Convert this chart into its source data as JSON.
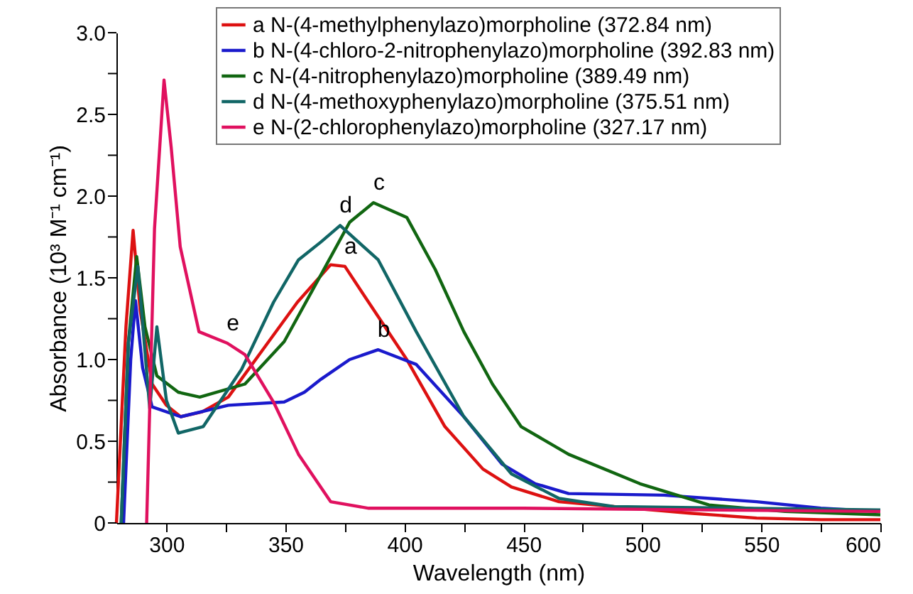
{
  "chart_data": {
    "type": "line",
    "xlabel": "Wavelength (nm)",
    "ylabel": "Absorbance (10³ M⁻¹ cm⁻¹)",
    "xlim": [
      279,
      600
    ],
    "ylim": [
      0,
      3
    ],
    "xticks": [
      300,
      {
        "value": 325,
        "label": null
      },
      350,
      {
        "value": 375,
        "label": null
      },
      400,
      {
        "value": 425,
        "label": null
      },
      450,
      {
        "value": 475,
        "label": null
      },
      500,
      {
        "value": 525,
        "label": null
      },
      550,
      {
        "value": 575,
        "label": null
      },
      600
    ],
    "yticks": [
      0,
      {
        "value": 0.25,
        "label": null
      },
      0.5,
      {
        "value": 0.75,
        "label": null
      },
      {
        "value": 1,
        "label": "1.0"
      },
      {
        "value": 1.25,
        "label": null
      },
      1.5,
      {
        "value": 1.75,
        "label": null
      },
      {
        "value": 2,
        "label": "2.0"
      },
      {
        "value": 2.25,
        "label": null
      },
      2.5,
      {
        "value": 2.75,
        "label": null
      },
      {
        "value": 3,
        "label": "3.0"
      }
    ],
    "grid": false,
    "legend": "top right",
    "line_style": "solid",
    "marker": "none",
    "series": [
      {
        "name": "a N-(4-methylphenylazo)morpholine (372.84 nm)",
        "color": "#dd1111",
        "x": [
          279,
          283,
          286,
          289,
          294,
          300,
          306,
          315,
          326,
          340,
          355,
          369,
          375,
          385,
          401,
          417,
          433,
          445,
          465,
          488,
          520,
          548,
          575,
          600
        ],
        "values": [
          0,
          1.2,
          1.79,
          1.3,
          0.85,
          0.72,
          0.65,
          0.68,
          0.77,
          1.05,
          1.35,
          1.58,
          1.57,
          1.35,
          1.0,
          0.59,
          0.33,
          0.22,
          0.13,
          0.1,
          0.06,
          0.03,
          0.02,
          0.02
        ]
      },
      {
        "name": "b N-(4-chloro-2-nitrophenylazo)morpholine (392.83 nm)",
        "color": "#1a1acc",
        "x": [
          282,
          285,
          287,
          290,
          294,
          306,
          326,
          349.5,
          358,
          365,
          377,
          389,
          405,
          425,
          441,
          455,
          469,
          509,
          548,
          575,
          600
        ],
        "values": [
          0,
          1.0,
          1.36,
          0.95,
          0.71,
          0.65,
          0.72,
          0.74,
          0.8,
          0.88,
          1.0,
          1.06,
          0.97,
          0.65,
          0.36,
          0.24,
          0.18,
          0.17,
          0.13,
          0.09,
          0.07
        ]
      },
      {
        "name": "c N-(4-nitrophenylazo)morpholine (389.49 nm)",
        "color": "#116611",
        "x": [
          281,
          284,
          287.5,
          291,
          296,
          305,
          314,
          333,
          349.5,
          365,
          377,
          387,
          401,
          413,
          425,
          437,
          449,
          469,
          499,
          528,
          560,
          600
        ],
        "values": [
          0,
          1.1,
          1.63,
          1.2,
          0.9,
          0.8,
          0.77,
          0.85,
          1.11,
          1.52,
          1.84,
          1.96,
          1.87,
          1.55,
          1.17,
          0.85,
          0.59,
          0.42,
          0.24,
          0.11,
          0.07,
          0.05
        ]
      },
      {
        "name": "d N-(4-methoxyphenylazo)morpholine (375.51 nm)",
        "color": "#116666",
        "x": [
          281,
          284,
          288,
          293,
          296,
          300,
          305,
          315.5,
          331.6,
          345,
          355.5,
          365,
          373,
          389,
          405,
          425,
          445,
          465,
          488,
          540,
          600
        ],
        "values": [
          0,
          1.1,
          1.57,
          0.7,
          1.2,
          0.75,
          0.55,
          0.59,
          0.94,
          1.35,
          1.61,
          1.72,
          1.82,
          1.61,
          1.17,
          0.65,
          0.3,
          0.15,
          0.1,
          0.09,
          0.08
        ]
      },
      {
        "name": "e N-(2-chlorophenylazo)morpholine (327.17 nm)",
        "color": "#e0115f",
        "x": [
          291.7,
          295,
          299,
          302,
          305.8,
          313.7,
          325.6,
          333,
          345,
          355.5,
          369,
          385,
          450,
          600
        ],
        "values": [
          0,
          1.8,
          2.71,
          2.3,
          1.69,
          1.17,
          1.1,
          1.03,
          0.74,
          0.42,
          0.13,
          0.09,
          0.09,
          0.07
        ]
      }
    ],
    "annotations": [
      {
        "text": "a",
        "x": 375,
        "y": 1.57
      },
      {
        "text": "b",
        "x": 389,
        "y": 1.06
      },
      {
        "text": "c",
        "x": 387,
        "y": 1.96
      },
      {
        "text": "d",
        "x": 373,
        "y": 1.82
      },
      {
        "text": "e",
        "x": 325.6,
        "y": 1.1
      }
    ]
  }
}
